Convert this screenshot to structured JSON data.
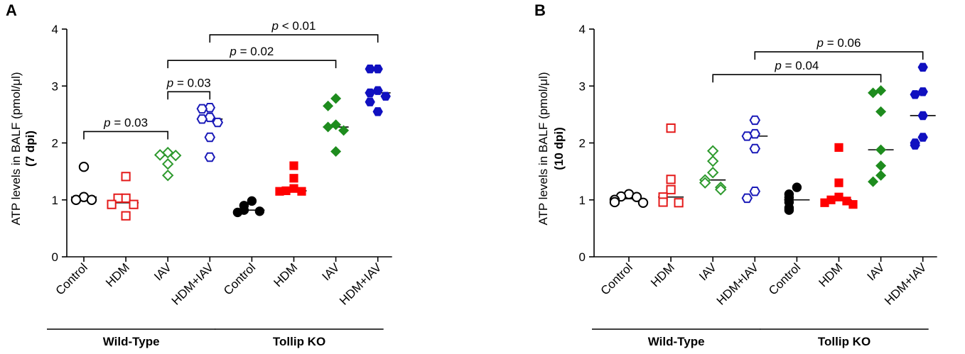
{
  "chart_data": [
    {
      "panel_label": "A",
      "type": "scatter",
      "ylabel_line1": "ATP levels in BALF (pmol/μl)",
      "ylabel_line2": "(7 dpi)",
      "ylim": [
        0,
        4
      ],
      "yticks": [
        "0",
        "1",
        "2",
        "3",
        "4"
      ],
      "categories": [
        "Control",
        "HDM",
        "IAV",
        "HDM+IAV",
        "Control",
        "HDM",
        "IAV",
        "HDM+IAV"
      ],
      "groups": [
        {
          "label": "Wild-Type",
          "categories": [
            "Control",
            "HDM",
            "IAV",
            "HDM+IAV"
          ]
        },
        {
          "label": "Tollip KO",
          "categories": [
            "Control",
            "HDM",
            "IAV",
            "HDM+IAV"
          ]
        }
      ],
      "series": [
        {
          "name": "Wild-Type Control",
          "marker": "circle-open",
          "color": "#000000",
          "median": 1.05,
          "values": [
            1.58,
            1.05,
            1.0,
            1.0
          ]
        },
        {
          "name": "Wild-Type HDM",
          "marker": "square-open",
          "color": "#e41a1a",
          "median": 0.95,
          "values": [
            1.41,
            1.03,
            1.03,
            0.92,
            0.92,
            0.72
          ]
        },
        {
          "name": "Wild-Type IAV",
          "marker": "diamond-open",
          "color": "#2e9a2e",
          "median": 1.78,
          "values": [
            1.83,
            1.79,
            1.78,
            1.63,
            1.43
          ]
        },
        {
          "name": "Wild-Type HDM+IAV",
          "marker": "hexagon-open",
          "color": "#1a1ab8",
          "median": 2.42,
          "values": [
            2.62,
            2.6,
            2.45,
            2.42,
            2.36,
            2.1,
            1.75
          ]
        },
        {
          "name": "Tollip KO Control",
          "marker": "circle-filled",
          "color": "#000000",
          "median": 0.82,
          "values": [
            0.98,
            0.9,
            0.82,
            0.8,
            0.78
          ]
        },
        {
          "name": "Tollip KO HDM",
          "marker": "square-filled",
          "color": "#ff0000",
          "median": 1.16,
          "values": [
            1.6,
            1.38,
            1.2,
            1.16,
            1.15,
            1.15
          ]
        },
        {
          "name": "Tollip KO IAV",
          "marker": "diamond-filled",
          "color": "#1e8c1e",
          "median": 2.28,
          "values": [
            2.78,
            2.65,
            2.32,
            2.28,
            2.22,
            1.85
          ]
        },
        {
          "name": "Tollip KO HDM+IAV",
          "marker": "hexagon-filled",
          "color": "#1010c0",
          "median": 2.88,
          "values": [
            3.3,
            3.3,
            2.92,
            2.88,
            2.82,
            2.72,
            2.55
          ]
        }
      ],
      "annotations": [
        {
          "p": "p",
          "rest": " = 0.03",
          "from": 0,
          "to": 2,
          "y": 2.2
        },
        {
          "p": "p",
          "rest": " = 0.03",
          "from": 2,
          "to": 3,
          "y": 2.9
        },
        {
          "p": "p",
          "rest": " = 0.02",
          "from": 2,
          "to": 6,
          "y": 3.45
        },
        {
          "p": "p",
          "rest": " < 0.01",
          "from": 3,
          "to": 7,
          "y": 3.9
        }
      ]
    },
    {
      "panel_label": "B",
      "type": "scatter",
      "ylabel_line1": "ATP levels in BALF (pmol/μl)",
      "ylabel_line2": "(10 dpi)",
      "ylim": [
        0,
        4
      ],
      "yticks": [
        "0",
        "1",
        "2",
        "3",
        "4"
      ],
      "categories": [
        "Control",
        "HDM",
        "IAV",
        "HDM+IAV",
        "Control",
        "HDM",
        "IAV",
        "HDM+IAV"
      ],
      "groups": [
        {
          "label": "Wild-Type",
          "categories": [
            "Control",
            "HDM",
            "IAV",
            "HDM+IAV"
          ]
        },
        {
          "label": "Tollip KO",
          "categories": [
            "Control",
            "HDM",
            "IAV",
            "HDM+IAV"
          ]
        }
      ],
      "series": [
        {
          "name": "Wild-Type Control",
          "marker": "circle-open",
          "color": "#000000",
          "median": 1.02,
          "values": [
            1.1,
            1.06,
            1.05,
            1.0,
            0.96,
            0.95
          ]
        },
        {
          "name": "Wild-Type HDM",
          "marker": "square-open",
          "color": "#e41a1a",
          "median": 1.05,
          "values": [
            2.26,
            1.36,
            1.18,
            1.05,
            0.96,
            0.95
          ]
        },
        {
          "name": "Wild-Type IAV",
          "marker": "diamond-open",
          "color": "#2e9a2e",
          "median": 1.35,
          "values": [
            1.86,
            1.68,
            1.48,
            1.35,
            1.3,
            1.22,
            1.18
          ]
        },
        {
          "name": "Wild-Type HDM+IAV",
          "marker": "hexagon-open",
          "color": "#1a1ab8",
          "median": 2.12,
          "values": [
            2.4,
            2.16,
            2.12,
            1.9,
            1.15,
            1.03
          ]
        },
        {
          "name": "Tollip KO Control",
          "marker": "circle-filled",
          "color": "#000000",
          "median": 1.0,
          "values": [
            1.22,
            1.1,
            1.04,
            0.96,
            0.86,
            0.82
          ]
        },
        {
          "name": "Tollip KO HDM",
          "marker": "square-filled",
          "color": "#ff0000",
          "median": 1.0,
          "values": [
            1.92,
            1.3,
            1.05,
            1.0,
            0.98,
            0.95,
            0.92
          ]
        },
        {
          "name": "Tollip KO IAV",
          "marker": "diamond-filled",
          "color": "#1e8c1e",
          "median": 1.88,
          "values": [
            2.92,
            2.88,
            2.55,
            1.88,
            1.6,
            1.43,
            1.32
          ]
        },
        {
          "name": "Tollip KO HDM+IAV",
          "marker": "hexagon-filled",
          "color": "#1010c0",
          "median": 2.48,
          "values": [
            3.33,
            2.9,
            2.85,
            2.48,
            2.1,
            2.0,
            1.96
          ]
        }
      ],
      "annotations": [
        {
          "p": "p",
          "rest": " = 0.04",
          "from": 2,
          "to": 6,
          "y": 3.2
        },
        {
          "p": "p",
          "rest": " = 0.06",
          "from": 3,
          "to": 7,
          "y": 3.6
        }
      ]
    }
  ]
}
